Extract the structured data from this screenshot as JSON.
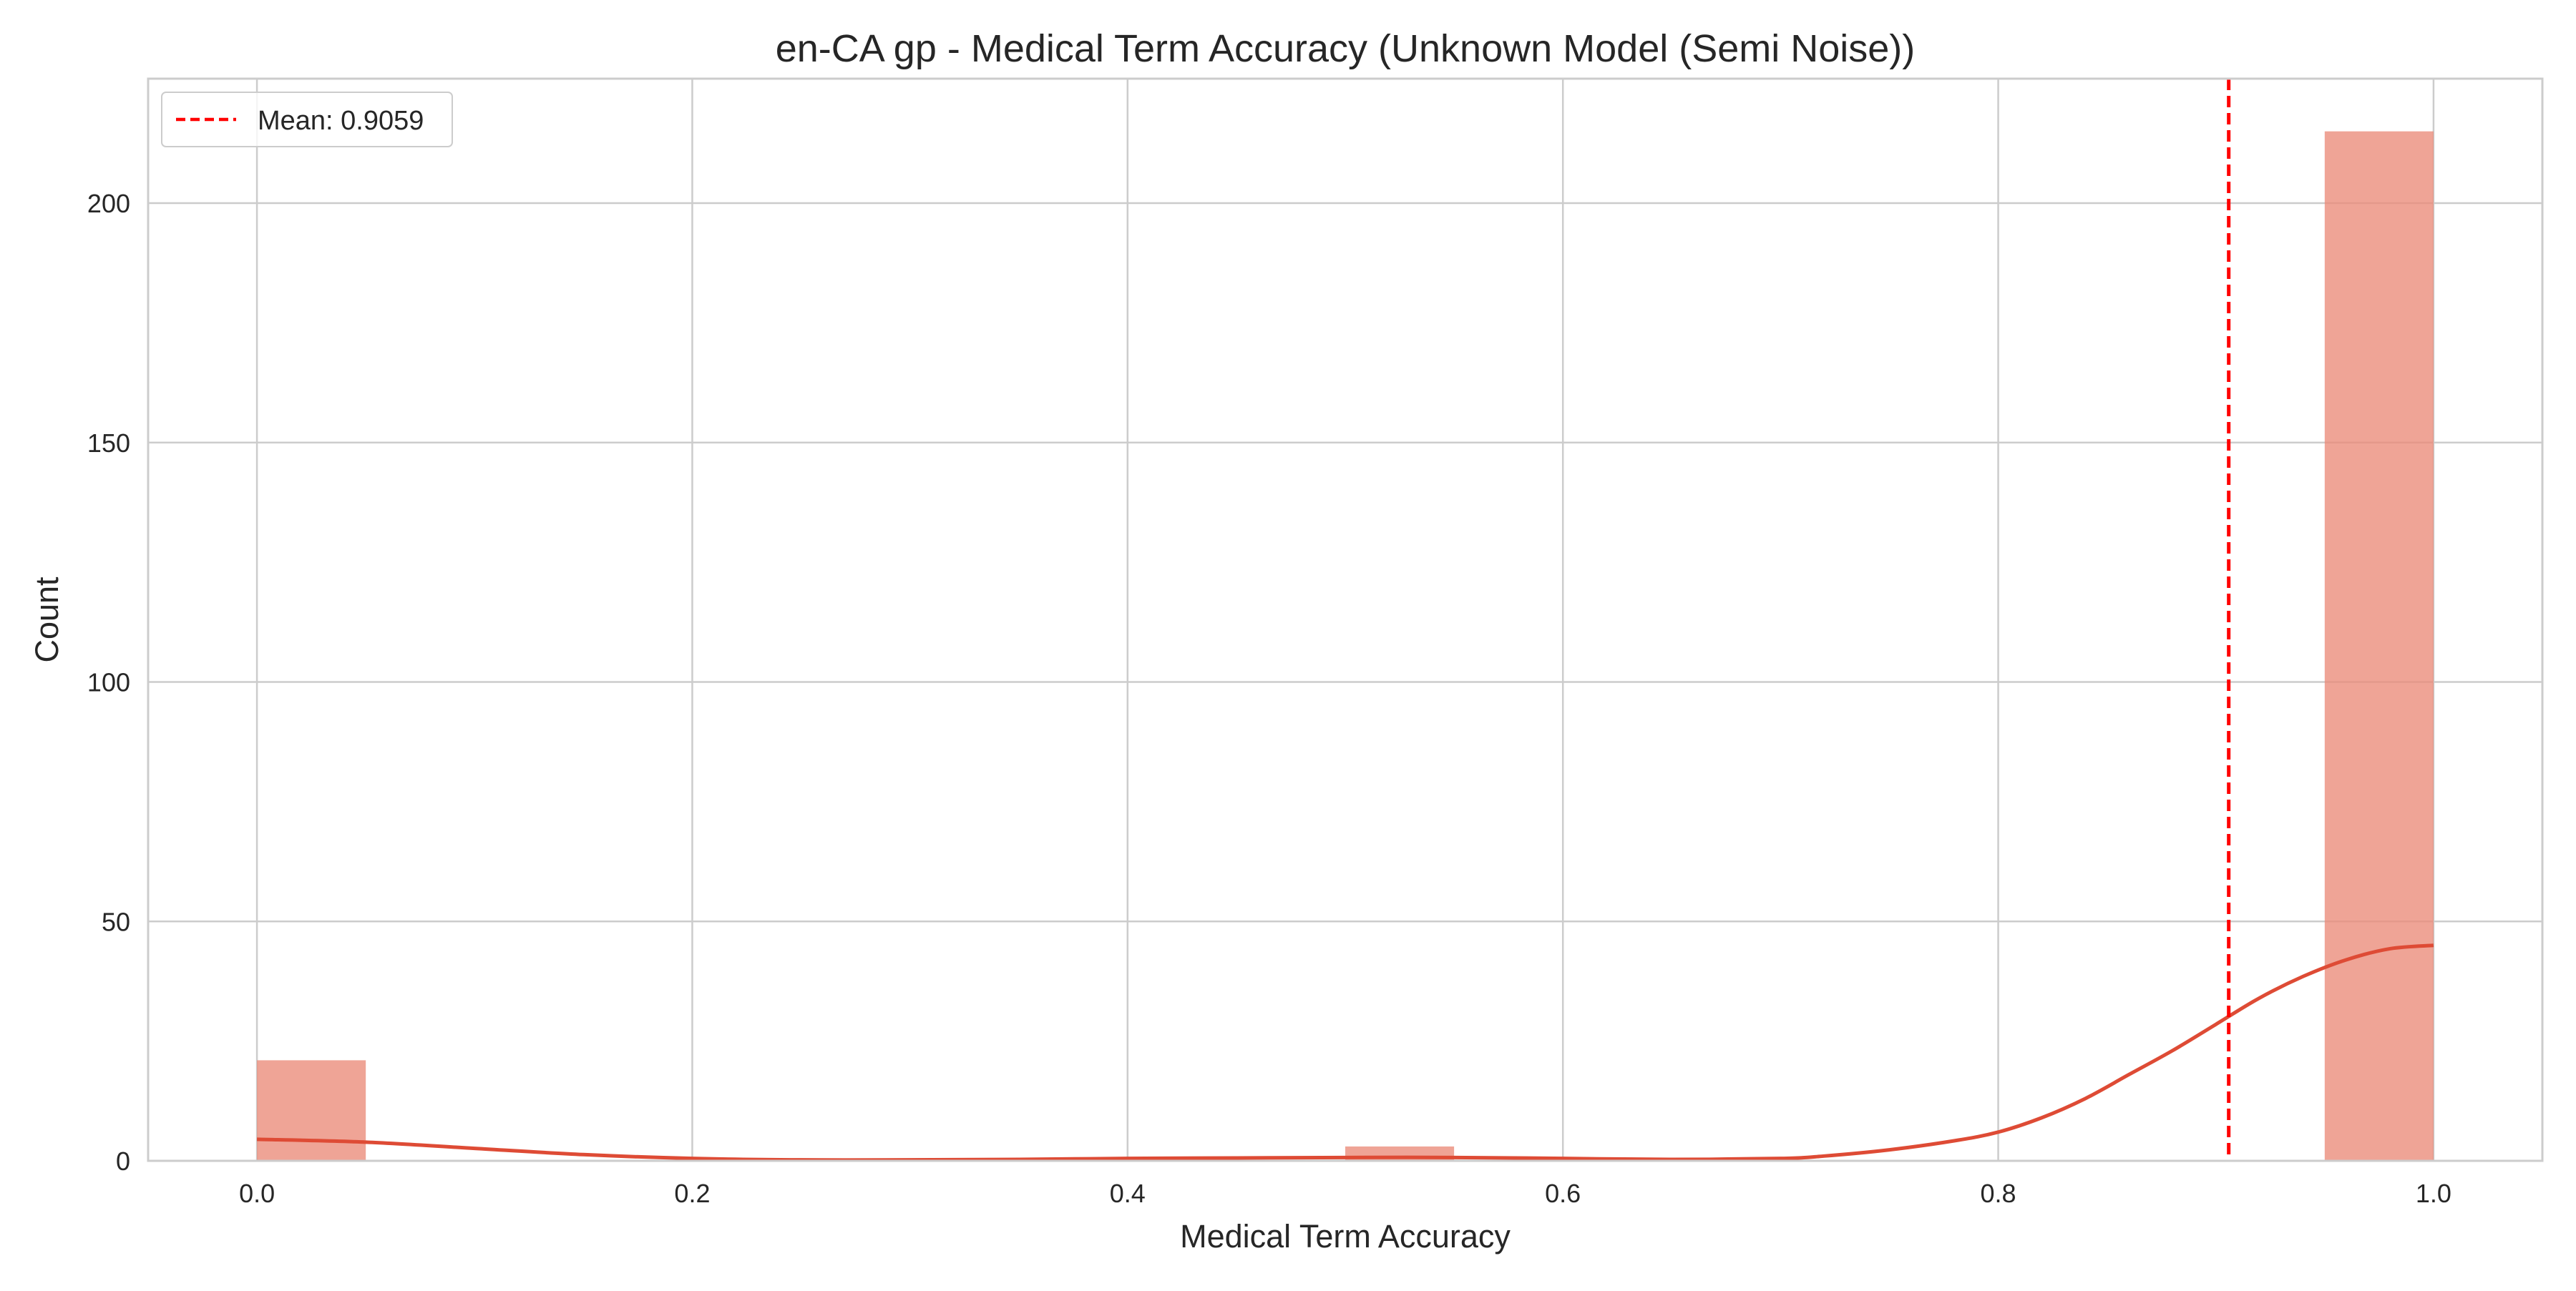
{
  "chart_data": {
    "type": "bar",
    "title": "en-CA gp - Medical Term Accuracy (Unknown Model (Semi Noise))",
    "xlabel": "Medical Term Accuracy",
    "ylabel": "Count",
    "xlim": [
      -0.05,
      1.05
    ],
    "ylim": [
      0,
      226
    ],
    "grid": true,
    "legend_placement": "top-left",
    "x_ticks": [
      "0.0",
      "0.2",
      "0.4",
      "0.6",
      "0.8",
      "1.0"
    ],
    "y_ticks": [
      "0",
      "50",
      "100",
      "150",
      "200"
    ],
    "bar_color": "#ea8a79",
    "line_color": "#de4b35",
    "mean_color": "#ff0000",
    "histogram": {
      "bin_width": 0.05,
      "bins": [
        {
          "x0": 0.0,
          "x1": 0.05,
          "count": 21
        },
        {
          "x0": 0.5,
          "x1": 0.55,
          "count": 3
        },
        {
          "x0": 0.95,
          "x1": 1.0,
          "count": 215
        }
      ]
    },
    "kde": {
      "x": [
        0.0,
        0.05,
        0.1,
        0.15,
        0.2,
        0.25,
        0.3,
        0.35,
        0.4,
        0.45,
        0.5,
        0.55,
        0.6,
        0.65,
        0.7,
        0.72,
        0.75,
        0.78,
        0.8,
        0.82,
        0.84,
        0.86,
        0.88,
        0.9,
        0.92,
        0.94,
        0.96,
        0.98,
        1.0
      ],
      "y": [
        4.5,
        3.9,
        2.6,
        1.3,
        0.5,
        0.2,
        0.2,
        0.3,
        0.5,
        0.6,
        0.7,
        0.7,
        0.5,
        0.3,
        0.5,
        1.0,
        2.3,
        4.2,
        6.0,
        9.0,
        13.0,
        18.0,
        23.0,
        28.5,
        34.0,
        38.5,
        42.0,
        44.3,
        45.0
      ]
    },
    "mean": {
      "value": 0.9059,
      "label": "Mean: 0.9059"
    }
  }
}
